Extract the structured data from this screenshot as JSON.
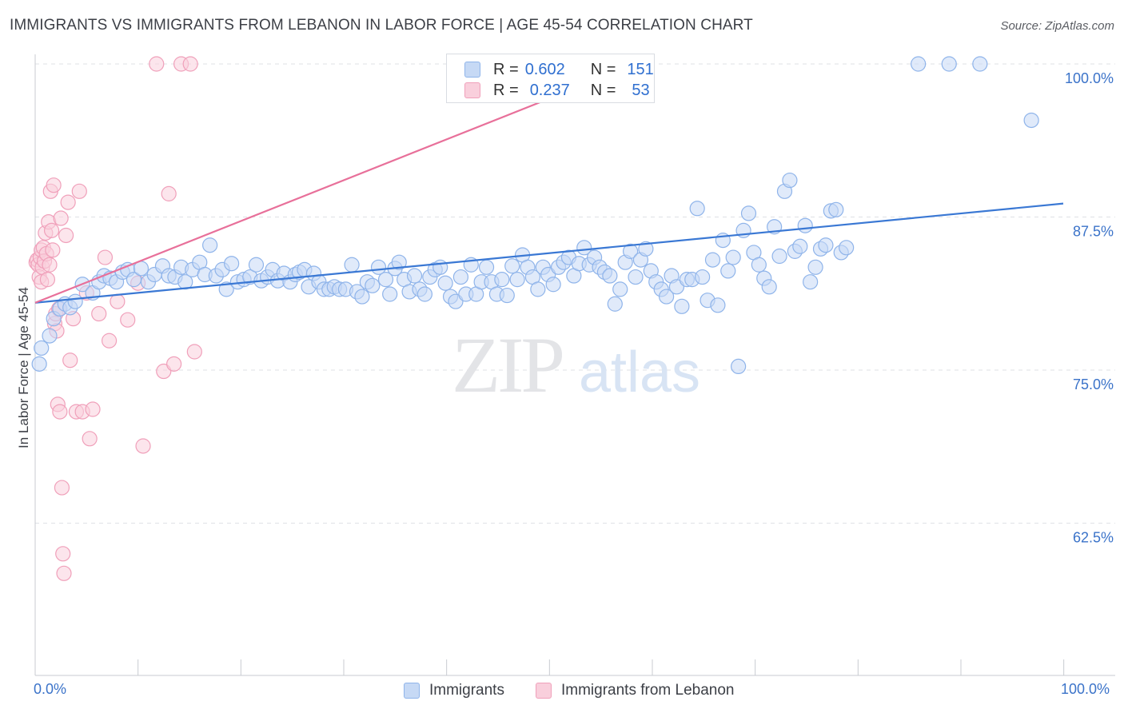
{
  "header": {
    "title": "IMMIGRANTS VS IMMIGRANTS FROM LEBANON IN LABOR FORCE | AGE 45-54 CORRELATION CHART",
    "source": "Source: ZipAtlas.com"
  },
  "watermark": {
    "zip": "ZIP",
    "atlas": "atlas"
  },
  "legend": {
    "r_label": "R =",
    "n_label": "N =",
    "rows": [
      {
        "r": "0.602",
        "n": "151",
        "color": "#8fb4ea",
        "fill": "#c6d9f5"
      },
      {
        "r": "0.237",
        "n": "53",
        "color": "#f0a0ba",
        "fill": "#f9cfdc"
      }
    ]
  },
  "bottom_legend": [
    {
      "label": "Immigrants",
      "color": "#8fb4ea",
      "fill": "#c6d9f5"
    },
    {
      "label": "Immigrants from Lebanon",
      "color": "#f0a0ba",
      "fill": "#f9cfdc"
    }
  ],
  "chart_data": {
    "type": "scatter",
    "title": "IMMIGRANTS VS IMMIGRANTS FROM LEBANON IN LABOR FORCE | AGE 45-54 CORRELATION CHART",
    "xlabel": "",
    "ylabel": "In Labor Force | Age 45-54",
    "xlim": [
      0,
      100
    ],
    "ylim": [
      51.5,
      102
    ],
    "x_tick_labels": [
      {
        "value": 0,
        "label": "0.0%"
      },
      {
        "value": 100,
        "label": "100.0%"
      }
    ],
    "y_tick_labels": [
      {
        "value": 100,
        "label": "100.0%"
      },
      {
        "value": 87.5,
        "label": "87.5%"
      },
      {
        "value": 75,
        "label": "75.0%"
      },
      {
        "value": 62.5,
        "label": "62.5%"
      }
    ],
    "grid": "horizontal dashed",
    "legend_position": "top-center",
    "colors": {
      "blue": "#3a78d4",
      "pink": "#e8709a"
    },
    "series": [
      {
        "name": "Immigrants",
        "trend": {
          "x": [
            0,
            100
          ],
          "y": [
            80.5,
            88.6
          ]
        },
        "points": [
          [
            0.4,
            75.5
          ],
          [
            0.6,
            76.8
          ],
          [
            1.4,
            77.8
          ],
          [
            1.8,
            79.2
          ],
          [
            2.4,
            80.0
          ],
          [
            2.9,
            80.4
          ],
          [
            3.4,
            80.1
          ],
          [
            3.9,
            80.6
          ],
          [
            4.6,
            82.0
          ],
          [
            5.6,
            81.3
          ],
          [
            6.2,
            82.2
          ],
          [
            6.7,
            82.7
          ],
          [
            7.3,
            82.5
          ],
          [
            7.9,
            82.2
          ],
          [
            8.5,
            83.0
          ],
          [
            9.0,
            83.2
          ],
          [
            9.6,
            82.4
          ],
          [
            10.3,
            83.3
          ],
          [
            11.0,
            82.2
          ],
          [
            11.6,
            82.8
          ],
          [
            12.4,
            83.5
          ],
          [
            13.0,
            82.7
          ],
          [
            13.6,
            82.6
          ],
          [
            14.2,
            83.4
          ],
          [
            14.6,
            82.2
          ],
          [
            15.3,
            83.2
          ],
          [
            16.0,
            83.8
          ],
          [
            16.5,
            82.8
          ],
          [
            17.0,
            85.2
          ],
          [
            17.6,
            82.7
          ],
          [
            18.2,
            83.2
          ],
          [
            18.6,
            81.6
          ],
          [
            19.1,
            83.7
          ],
          [
            19.7,
            82.2
          ],
          [
            20.3,
            82.4
          ],
          [
            20.9,
            82.6
          ],
          [
            21.5,
            83.6
          ],
          [
            22.0,
            82.3
          ],
          [
            22.6,
            82.6
          ],
          [
            23.1,
            83.2
          ],
          [
            23.6,
            82.3
          ],
          [
            24.2,
            82.9
          ],
          [
            24.8,
            82.2
          ],
          [
            25.3,
            82.8
          ],
          [
            25.7,
            83.0
          ],
          [
            26.2,
            83.2
          ],
          [
            26.6,
            81.8
          ],
          [
            27.1,
            82.9
          ],
          [
            27.6,
            82.2
          ],
          [
            28.1,
            81.6
          ],
          [
            28.6,
            81.6
          ],
          [
            29.1,
            81.8
          ],
          [
            29.6,
            81.6
          ],
          [
            30.2,
            81.6
          ],
          [
            30.8,
            83.6
          ],
          [
            31.3,
            81.4
          ],
          [
            31.8,
            81.0
          ],
          [
            32.3,
            82.2
          ],
          [
            32.8,
            81.9
          ],
          [
            33.4,
            83.4
          ],
          [
            34.1,
            82.4
          ],
          [
            34.5,
            81.2
          ],
          [
            35.0,
            83.3
          ],
          [
            35.4,
            83.8
          ],
          [
            35.9,
            82.4
          ],
          [
            36.4,
            81.4
          ],
          [
            36.9,
            82.7
          ],
          [
            37.4,
            81.6
          ],
          [
            37.9,
            81.2
          ],
          [
            38.4,
            82.6
          ],
          [
            38.9,
            83.2
          ],
          [
            39.4,
            83.4
          ],
          [
            39.9,
            82.1
          ],
          [
            40.4,
            81.0
          ],
          [
            40.9,
            80.6
          ],
          [
            41.4,
            82.6
          ],
          [
            41.9,
            81.2
          ],
          [
            42.4,
            83.6
          ],
          [
            42.9,
            81.2
          ],
          [
            43.4,
            82.2
          ],
          [
            43.9,
            83.4
          ],
          [
            44.4,
            82.2
          ],
          [
            44.9,
            81.2
          ],
          [
            45.4,
            82.4
          ],
          [
            45.9,
            81.1
          ],
          [
            46.4,
            83.5
          ],
          [
            46.9,
            82.4
          ],
          [
            47.4,
            84.4
          ],
          [
            47.9,
            83.4
          ],
          [
            48.4,
            82.6
          ],
          [
            48.9,
            81.6
          ],
          [
            49.4,
            83.4
          ],
          [
            49.9,
            82.8
          ],
          [
            50.4,
            82.0
          ],
          [
            50.9,
            83.4
          ],
          [
            51.4,
            83.8
          ],
          [
            51.9,
            84.2
          ],
          [
            52.4,
            82.7
          ],
          [
            52.9,
            83.7
          ],
          [
            53.4,
            85.0
          ],
          [
            53.9,
            83.6
          ],
          [
            54.4,
            84.2
          ],
          [
            54.9,
            83.4
          ],
          [
            55.4,
            83.0
          ],
          [
            55.9,
            82.7
          ],
          [
            56.4,
            80.4
          ],
          [
            56.9,
            81.6
          ],
          [
            57.4,
            83.8
          ],
          [
            57.9,
            84.7
          ],
          [
            58.4,
            82.6
          ],
          [
            58.9,
            84.0
          ],
          [
            59.4,
            84.9
          ],
          [
            59.9,
            83.1
          ],
          [
            60.4,
            82.2
          ],
          [
            60.9,
            81.6
          ],
          [
            61.4,
            81.0
          ],
          [
            61.9,
            82.7
          ],
          [
            62.4,
            81.8
          ],
          [
            62.9,
            80.2
          ],
          [
            63.4,
            82.4
          ],
          [
            63.9,
            82.4
          ],
          [
            64.4,
            88.2
          ],
          [
            64.9,
            82.6
          ],
          [
            65.4,
            80.7
          ],
          [
            65.9,
            84.0
          ],
          [
            66.4,
            80.3
          ],
          [
            66.9,
            85.6
          ],
          [
            67.4,
            83.1
          ],
          [
            67.9,
            84.2
          ],
          [
            68.4,
            75.3
          ],
          [
            68.9,
            86.4
          ],
          [
            69.4,
            87.8
          ],
          [
            69.9,
            84.6
          ],
          [
            70.4,
            83.6
          ],
          [
            70.9,
            82.5
          ],
          [
            71.4,
            81.8
          ],
          [
            71.9,
            86.7
          ],
          [
            72.4,
            84.3
          ],
          [
            72.9,
            89.6
          ],
          [
            73.4,
            90.5
          ],
          [
            73.9,
            84.7
          ],
          [
            74.4,
            85.1
          ],
          [
            74.9,
            86.8
          ],
          [
            75.4,
            82.2
          ],
          [
            75.9,
            83.4
          ],
          [
            76.4,
            84.9
          ],
          [
            76.9,
            85.2
          ],
          [
            77.4,
            88.0
          ],
          [
            77.9,
            88.1
          ],
          [
            78.4,
            84.6
          ],
          [
            78.9,
            85.0
          ],
          [
            85.9,
            100.0
          ],
          [
            88.9,
            100.0
          ],
          [
            91.9,
            100.0
          ],
          [
            96.9,
            95.4
          ]
        ]
      },
      {
        "name": "Immigrants from Lebanon",
        "trend": {
          "x": [
            0,
            60
          ],
          "y": [
            80.5,
            100.5
          ]
        },
        "points": [
          [
            0.1,
            83.8
          ],
          [
            0.2,
            84.0
          ],
          [
            0.3,
            83.6
          ],
          [
            0.4,
            82.6
          ],
          [
            0.5,
            84.2
          ],
          [
            0.6,
            82.2
          ],
          [
            0.6,
            84.8
          ],
          [
            0.7,
            83.4
          ],
          [
            0.8,
            85.0
          ],
          [
            0.9,
            83.9
          ],
          [
            1.0,
            86.2
          ],
          [
            1.1,
            84.5
          ],
          [
            1.2,
            82.4
          ],
          [
            1.3,
            87.1
          ],
          [
            1.4,
            83.6
          ],
          [
            1.5,
            89.6
          ],
          [
            1.6,
            86.4
          ],
          [
            1.7,
            84.8
          ],
          [
            1.8,
            90.1
          ],
          [
            1.9,
            78.8
          ],
          [
            2.0,
            79.6
          ],
          [
            2.1,
            78.2
          ],
          [
            2.2,
            72.2
          ],
          [
            2.3,
            80.0
          ],
          [
            2.4,
            71.6
          ],
          [
            2.5,
            87.4
          ],
          [
            2.6,
            65.4
          ],
          [
            2.7,
            60.0
          ],
          [
            2.8,
            58.4
          ],
          [
            3.0,
            86.0
          ],
          [
            3.2,
            88.7
          ],
          [
            3.4,
            75.8
          ],
          [
            3.7,
            79.2
          ],
          [
            4.0,
            71.6
          ],
          [
            4.3,
            89.6
          ],
          [
            4.6,
            71.6
          ],
          [
            5.0,
            81.3
          ],
          [
            5.3,
            69.4
          ],
          [
            5.6,
            71.8
          ],
          [
            6.2,
            79.6
          ],
          [
            6.8,
            84.2
          ],
          [
            7.2,
            77.4
          ],
          [
            8.0,
            80.6
          ],
          [
            9.0,
            79.1
          ],
          [
            10.0,
            82.1
          ],
          [
            10.5,
            68.8
          ],
          [
            11.8,
            100.0
          ],
          [
            12.5,
            74.9
          ],
          [
            13.0,
            89.4
          ],
          [
            13.5,
            75.5
          ],
          [
            14.2,
            100.0
          ],
          [
            15.1,
            100.0
          ],
          [
            15.5,
            76.5
          ]
        ]
      }
    ]
  }
}
